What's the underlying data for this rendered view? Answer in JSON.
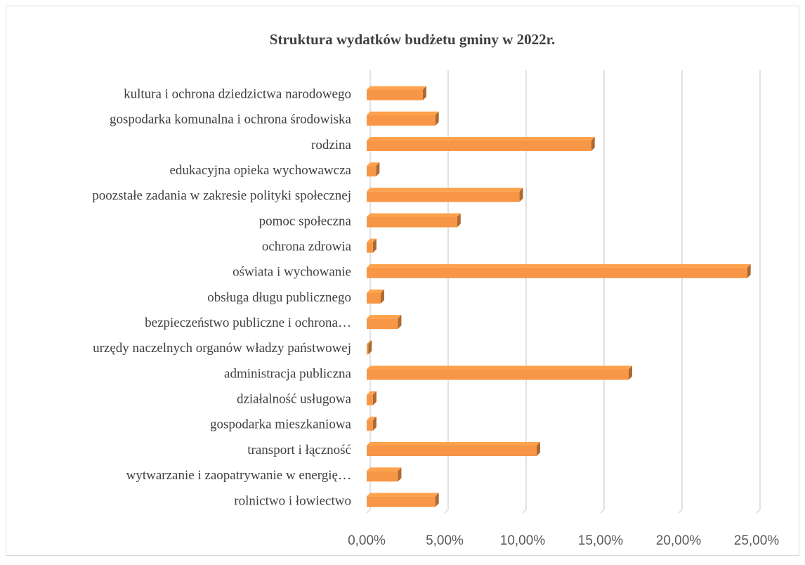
{
  "chart_data": {
    "type": "bar",
    "orientation": "horizontal",
    "title": "Struktura wydatków budżetu gminy w 2022r.",
    "categories": [
      "kultura i ochrona dziedzictwa narodowego",
      "gospodarka komunalna i ochrona środowiska",
      "rodzina",
      "edukacyjna opieka wychowawcza",
      "poozstałe zadania w zakresie polityki społecznej",
      "pomoc społeczna",
      "ochrona zdrowia",
      "oświata i wychowanie",
      "obsługa długu publicznego",
      "bezpieczeństwo publiczne i ochrona…",
      "urzędy naczelnych organów władzy państwowej",
      "administracja publiczna",
      "działalność usługowa",
      "gospodarka mieszkaniowa",
      "transport i łączność",
      "wytwarzanie i zaopatrywanie w energię…",
      "rolnictwo i łowiectwo"
    ],
    "values": [
      3.6,
      4.4,
      14.4,
      0.6,
      9.8,
      5.8,
      0.4,
      24.4,
      0.9,
      2.0,
      0.1,
      16.8,
      0.4,
      0.4,
      10.9,
      2.0,
      4.4
    ],
    "color": "#f79646",
    "xlim": [
      0,
      25
    ],
    "xticks": [
      {
        "value": 0,
        "label": "0,00%"
      },
      {
        "value": 5,
        "label": "5,00%"
      },
      {
        "value": 10,
        "label": "10,00%"
      },
      {
        "value": 15,
        "label": "15,00%"
      },
      {
        "value": 20,
        "label": "20,00%"
      },
      {
        "value": 25,
        "label": "25,00%"
      }
    ],
    "grid": true
  }
}
